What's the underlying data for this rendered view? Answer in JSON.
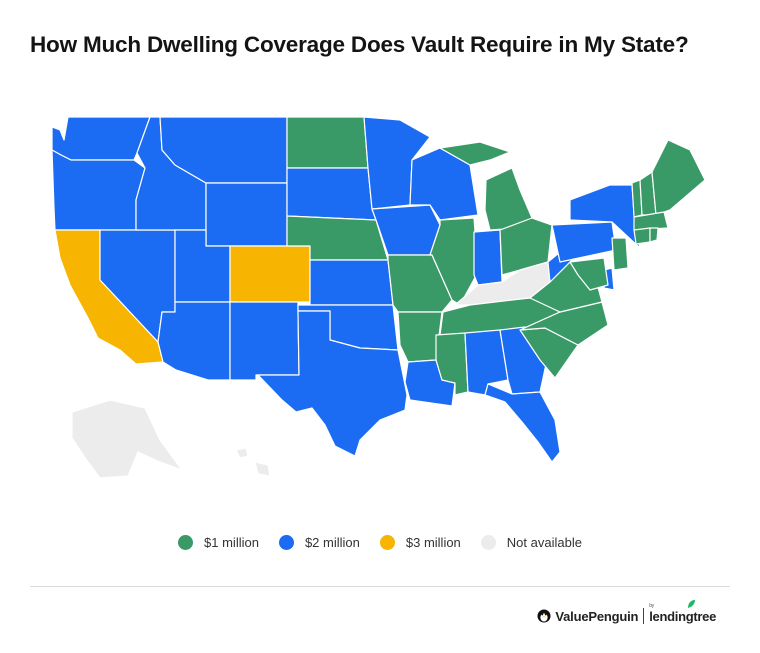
{
  "title": "How Much Dwelling Coverage Does Vault Require in My State?",
  "colors": {
    "one_million": "#3a9a67",
    "two_million": "#1b6cf2",
    "three_million": "#f7b400",
    "not_available": "#ececec",
    "border": "#ffffff"
  },
  "legend": [
    {
      "label": "$1 million",
      "color": "#3a9a67"
    },
    {
      "label": "$2 million",
      "color": "#1b6cf2"
    },
    {
      "label": "$3 million",
      "color": "#f7b400"
    },
    {
      "label": "Not available",
      "color": "#ececec"
    }
  ],
  "states": {
    "WA": "$2 million",
    "OR": "$2 million",
    "CA": "$3 million",
    "NV": "$2 million",
    "ID": "$2 million",
    "MT": "$2 million",
    "WY": "$2 million",
    "UT": "$2 million",
    "CO": "$3 million",
    "AZ": "$2 million",
    "NM": "$2 million",
    "ND": "$1 million",
    "SD": "$2 million",
    "NE": "$1 million",
    "KS": "$2 million",
    "OK": "$2 million",
    "TX": "$2 million",
    "MN": "$2 million",
    "IA": "$2 million",
    "MO": "$1 million",
    "AR": "$1 million",
    "LA": "$2 million",
    "WI": "$2 million",
    "IL": "$1 million",
    "MI": "$1 million",
    "IN": "$2 million",
    "OH": "$1 million",
    "KY": "Not available",
    "TN": "$1 million",
    "MS": "$1 million",
    "AL": "$2 million",
    "GA": "$2 million",
    "FL": "$2 million",
    "SC": "$1 million",
    "NC": "$1 million",
    "VA": "$1 million",
    "WV": "$2 million",
    "PA": "$2 million",
    "NY": "$2 million",
    "VT": "$1 million",
    "NH": "$1 million",
    "ME": "$1 million",
    "MA": "$1 million",
    "CT": "$1 million",
    "RI": "$1 million",
    "NJ": "$1 million",
    "DE": "$2 million",
    "MD": "$1 million",
    "AK": "Not available",
    "HI": "Not available"
  },
  "brand": {
    "valuepenguin": "ValuePenguin",
    "lendingtree_by": "by",
    "lendingtree": "lendingtree"
  }
}
